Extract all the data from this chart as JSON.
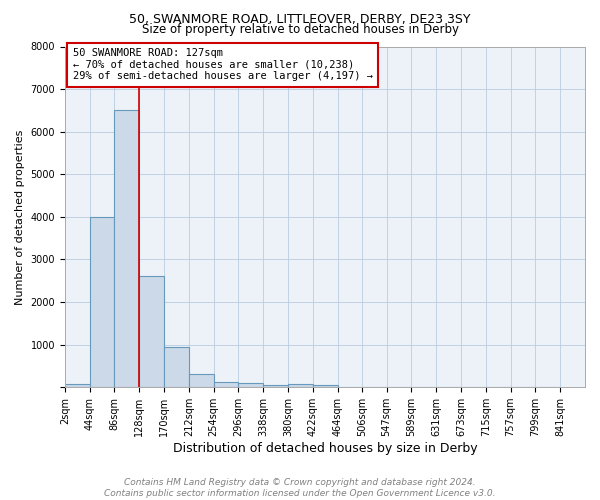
{
  "title": "50, SWANMORE ROAD, LITTLEOVER, DERBY, DE23 3SY",
  "subtitle": "Size of property relative to detached houses in Derby",
  "xlabel": "Distribution of detached houses by size in Derby",
  "ylabel": "Number of detached properties",
  "bin_edges": [
    2,
    44,
    86,
    128,
    170,
    212,
    254,
    296,
    338,
    380,
    422,
    464,
    506,
    547,
    589,
    631,
    673,
    715,
    757,
    799,
    841
  ],
  "bar_heights": [
    75,
    4000,
    6500,
    2600,
    950,
    300,
    120,
    100,
    60,
    70,
    50,
    0,
    0,
    0,
    0,
    0,
    0,
    0,
    0,
    0
  ],
  "bar_color": "#ccd9e8",
  "bar_edge_color": "#6699bb",
  "bar_edge_width": 0.8,
  "property_size": 127,
  "red_line_color": "#cc0000",
  "annotation_line1": "50 SWANMORE ROAD: 127sqm",
  "annotation_line2": "← 70% of detached houses are smaller (10,238)",
  "annotation_line3": "29% of semi-detached houses are larger (4,197) →",
  "annotation_box_color": "#cc0000",
  "annotation_text_color": "black",
  "ylim": [
    0,
    8000
  ],
  "yticks": [
    0,
    1000,
    2000,
    3000,
    4000,
    5000,
    6000,
    7000,
    8000
  ],
  "grid_color": "#b8cce0",
  "background_color": "#edf2f8",
  "footer_line1": "Contains HM Land Registry data © Crown copyright and database right 2024.",
  "footer_line2": "Contains public sector information licensed under the Open Government Licence v3.0.",
  "title_fontsize": 9,
  "subtitle_fontsize": 8.5,
  "xlabel_fontsize": 9,
  "ylabel_fontsize": 8,
  "tick_fontsize": 7,
  "footer_fontsize": 6.5,
  "annotation_fontsize": 7.5
}
